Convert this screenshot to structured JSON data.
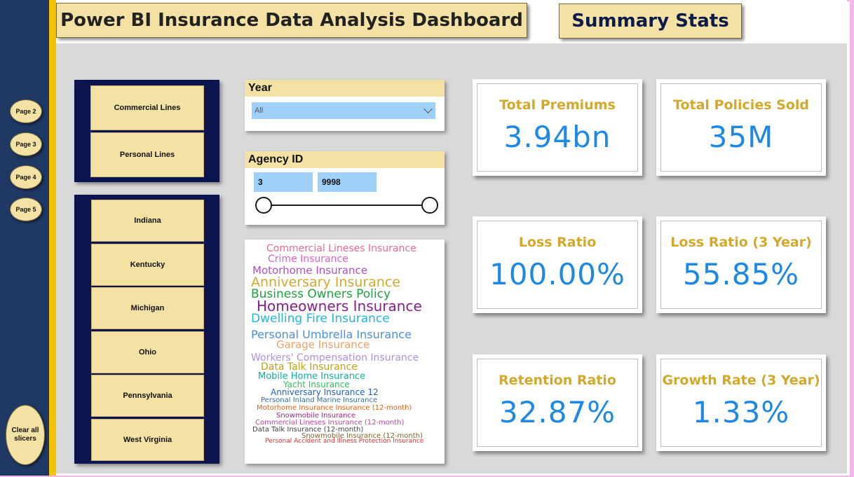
{
  "header": {
    "title": "Power BI Insurance Data Analysis Dashboard",
    "summary_label": "Summary Stats"
  },
  "nav": {
    "pages": [
      "Page 2",
      "Page 3",
      "Page 4",
      "Page 5"
    ],
    "clear_label": "Clear all slicers"
  },
  "lines_slicer": {
    "items": [
      "Commercial Lines",
      "Personal Lines"
    ]
  },
  "state_slicer": {
    "items": [
      "Indiana",
      "Kentucky",
      "Michigan",
      "Ohio",
      "Pennsylvania",
      "West Virginia"
    ]
  },
  "year_filter": {
    "title": "Year",
    "value": "All"
  },
  "agency_filter": {
    "title": "Agency ID",
    "min": "3",
    "max": "9998"
  },
  "word_cloud": [
    {
      "text": "Commercial Lineses Insurance",
      "color": "#f06a8c"
    },
    {
      "text": "Crime Insurance",
      "color": "#e060c8"
    },
    {
      "text": "Motorhome Insurance",
      "color": "#b050c0"
    },
    {
      "text": "Anniversary Insurance",
      "color": "#d4a82a"
    },
    {
      "text": "Business Owners Policy",
      "color": "#20a040"
    },
    {
      "text": "Homeowners Insurance",
      "color": "#8a2090"
    },
    {
      "text": "Dwelling Fire Insurance",
      "color": "#20b8e0"
    },
    {
      "text": "Personal Umbrella Insurance",
      "color": "#4a90e0"
    },
    {
      "text": "Garage Insurance",
      "color": "#f0a060"
    },
    {
      "text": "Workers' Compensation Insurance",
      "color": "#b090e0"
    },
    {
      "text": "Data Talk Insurance",
      "color": "#c0a020"
    },
    {
      "text": "Mobile Home Insurance",
      "color": "#10b0a0"
    },
    {
      "text": "Yacht Insurance",
      "color": "#30c060"
    },
    {
      "text": "Anniversary Insurance 12",
      "color": "#2060c0"
    },
    {
      "text": "Personal Inland Marine Insurance",
      "color": "#3070a0"
    },
    {
      "text": "Motorhome Insurance Insurance (12-month)",
      "color": "#e06010"
    },
    {
      "text": "Snowmobile Insurance",
      "color": "#a02080"
    },
    {
      "text": "Commercial Lineses Insurance (12-month)",
      "color": "#c040a0"
    },
    {
      "text": "Data Talk Insurance (12-month)",
      "color": "#404040"
    },
    {
      "text": "Snowmobile Insurance (12-month)",
      "color": "#806020"
    },
    {
      "text": "Personal Accident and Illness Protection Insurance",
      "color": "#e03030"
    }
  ],
  "kpis": [
    {
      "label": "Total Premiums",
      "value": "3.94bn"
    },
    {
      "label": "Total Policies Sold",
      "value": "35M"
    },
    {
      "label": "Loss Ratio",
      "value": "100.00%"
    },
    {
      "label": "Loss Ratio (3 Year)",
      "value": "55.85%"
    },
    {
      "label": "Retention Ratio",
      "value": "32.87%"
    },
    {
      "label": "Growth Rate (3 Year)",
      "value": "1.33%"
    }
  ],
  "colors": {
    "nav": "#1f3864",
    "accent": "#f5c200",
    "card_fill": "#f3e2a3",
    "kpi_value": "#1e88e5",
    "kpi_label": "#d4a82a"
  }
}
